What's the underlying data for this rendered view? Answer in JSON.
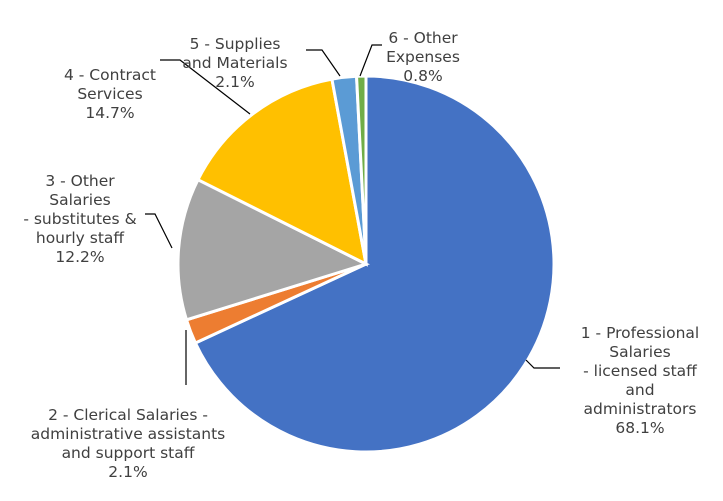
{
  "chart_data": {
    "type": "pie",
    "title": "",
    "slices": [
      {
        "label": "1 - Professional\nSalaries\n- licensed staff\nand\nadministrators",
        "value": 68.1,
        "pct_label": "68.1%",
        "color": "#4472c4"
      },
      {
        "label": "2 - Clerical Salaries -\nadministrative assistants\nand support staff",
        "value": 2.1,
        "pct_label": "2.1%",
        "color": "#ed7d31"
      },
      {
        "label": "3 - Other\nSalaries\n- substitutes &\nhourly staff",
        "value": 12.2,
        "pct_label": "12.2%",
        "color": "#a5a5a5"
      },
      {
        "label": "4 - Contract\nServices",
        "value": 14.7,
        "pct_label": "14.7%",
        "color": "#ffc000"
      },
      {
        "label": "5 - Supplies\nand Materials",
        "value": 2.1,
        "pct_label": "2.1%",
        "color": "#5b9bd5"
      },
      {
        "label": "6  - Other\nExpenses",
        "value": 0.8,
        "pct_label": "0.8%",
        "color": "#70ad47"
      }
    ],
    "start_angle_deg": 0,
    "direction": "clockwise",
    "legend": "none",
    "slice_border_color": "#ffffff",
    "leader_line_color": "#000000"
  }
}
